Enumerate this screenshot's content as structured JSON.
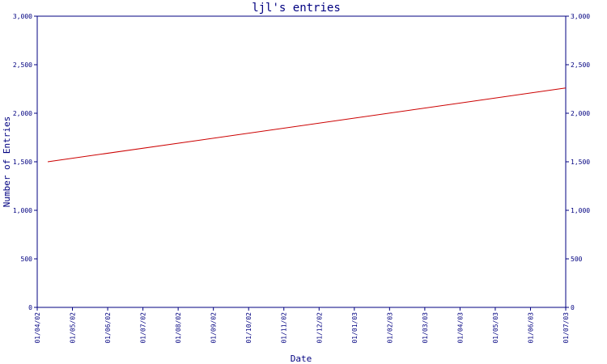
{
  "chart_data": {
    "type": "line",
    "title": "ljl's entries",
    "xlabel": "Date",
    "ylabel": "Number of Entries",
    "x_ticks": [
      "01/04/02",
      "01/05/02",
      "01/06/02",
      "01/07/02",
      "01/08/02",
      "01/09/02",
      "01/10/02",
      "01/11/02",
      "01/12/02",
      "01/01/03",
      "01/02/03",
      "01/03/03",
      "01/04/03",
      "01/05/03",
      "01/06/03",
      "01/07/03"
    ],
    "ylim": [
      0,
      3000
    ],
    "y_ticks": [
      0,
      500,
      1000,
      1500,
      2000,
      2500,
      3000
    ],
    "y_tick_labels": [
      "0",
      "500",
      "1,000",
      "1,500",
      "2,000",
      "2,500",
      "3,000"
    ],
    "series": [
      {
        "color": "#cc0000",
        "points": [
          {
            "x": "01/04/02",
            "y": 1500
          },
          {
            "x": "01/07/03",
            "y": 2260
          }
        ]
      }
    ],
    "colors": {
      "axis": "#000080",
      "line": "#cc0000",
      "background": "#ffffff"
    },
    "grid": false,
    "mirrored_right_axis": true
  }
}
